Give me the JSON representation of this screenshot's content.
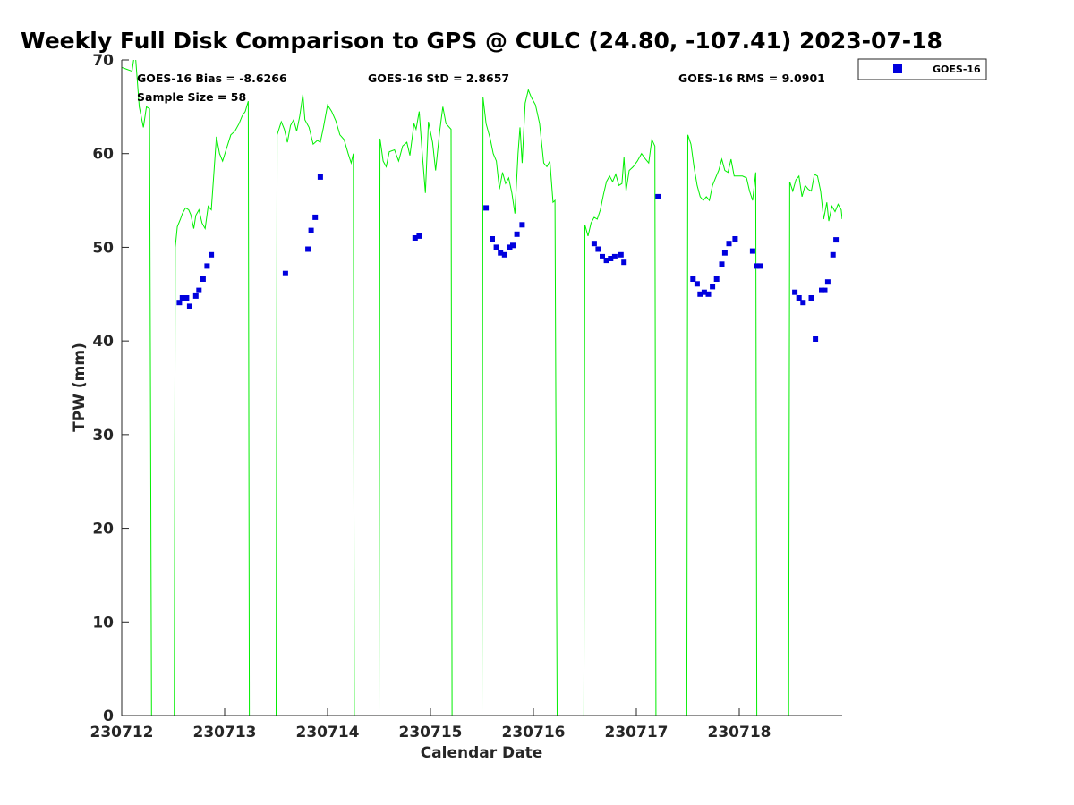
{
  "chart_data": {
    "type": "scatter",
    "title": "Weekly Full Disk Comparison to GPS @ CULC (24.80, -107.41) 2023-07-18",
    "xlabel": "Calendar Date",
    "ylabel": "TPW (mm)",
    "xlim": [
      0,
      7
    ],
    "ylim": [
      0,
      70
    ],
    "x_ticks": [
      {
        "value": 0,
        "label": "230712"
      },
      {
        "value": 1,
        "label": "230713"
      },
      {
        "value": 2,
        "label": "230714"
      },
      {
        "value": 3,
        "label": "230715"
      },
      {
        "value": 4,
        "label": "230716"
      },
      {
        "value": 5,
        "label": "230717"
      },
      {
        "value": 6,
        "label": "230718"
      }
    ],
    "y_ticks": [
      0,
      10,
      20,
      30,
      40,
      50,
      60,
      70
    ],
    "stats": {
      "bias": "GOES-16 Bias = -8.6266",
      "std": "GOES-16 StD = 2.8657",
      "rms": "GOES-16 RMS = 9.0901",
      "sample_size": "Sample Size = 58"
    },
    "legend": {
      "position": "top-right",
      "entries": [
        "GOES-16"
      ]
    },
    "colors": {
      "goes": "#0000dd",
      "gps": "#00ee00",
      "axis": "#262626"
    },
    "series": [
      {
        "name": "GOES-16",
        "marker": "square",
        "points": [
          [
            0.56,
            44.1
          ],
          [
            0.59,
            44.6
          ],
          [
            0.63,
            44.6
          ],
          [
            0.66,
            43.7
          ],
          [
            0.72,
            44.8
          ],
          [
            0.75,
            45.4
          ],
          [
            0.79,
            46.6
          ],
          [
            0.83,
            48.0
          ],
          [
            0.87,
            49.2
          ],
          [
            1.59,
            47.2
          ],
          [
            1.81,
            49.8
          ],
          [
            1.84,
            51.8
          ],
          [
            1.88,
            53.2
          ],
          [
            1.93,
            57.5
          ],
          [
            2.85,
            51.0
          ],
          [
            2.89,
            51.2
          ],
          [
            3.54,
            54.2
          ],
          [
            3.6,
            50.9
          ],
          [
            3.64,
            50.0
          ],
          [
            3.68,
            49.4
          ],
          [
            3.72,
            49.2
          ],
          [
            3.77,
            50.0
          ],
          [
            3.8,
            50.2
          ],
          [
            3.84,
            51.4
          ],
          [
            3.89,
            52.4
          ],
          [
            4.59,
            50.4
          ],
          [
            4.63,
            49.8
          ],
          [
            4.67,
            49.0
          ],
          [
            4.71,
            48.6
          ],
          [
            4.75,
            48.8
          ],
          [
            4.79,
            49.0
          ],
          [
            4.85,
            49.2
          ],
          [
            4.88,
            48.4
          ],
          [
            5.21,
            55.4
          ],
          [
            5.55,
            46.6
          ],
          [
            5.59,
            46.1
          ],
          [
            5.62,
            45.0
          ],
          [
            5.66,
            45.2
          ],
          [
            5.7,
            45.0
          ],
          [
            5.74,
            45.8
          ],
          [
            5.78,
            46.6
          ],
          [
            5.83,
            48.2
          ],
          [
            5.86,
            49.4
          ],
          [
            5.9,
            50.4
          ],
          [
            5.96,
            50.9
          ],
          [
            6.13,
            49.6
          ],
          [
            6.17,
            48.0
          ],
          [
            6.2,
            48.0
          ],
          [
            6.54,
            45.2
          ],
          [
            6.58,
            44.6
          ],
          [
            6.62,
            44.1
          ],
          [
            6.7,
            44.6
          ],
          [
            6.74,
            40.2
          ],
          [
            6.8,
            45.4
          ],
          [
            6.83,
            45.4
          ],
          [
            6.86,
            46.3
          ],
          [
            6.91,
            49.2
          ],
          [
            6.94,
            50.8
          ]
        ]
      },
      {
        "name": "GPS",
        "line": true,
        "points": [
          [
            0.0,
            69.2
          ],
          [
            0.05,
            69.0
          ],
          [
            0.1,
            68.8
          ],
          [
            0.13,
            71.0
          ],
          [
            0.17,
            65.0
          ],
          [
            0.21,
            62.8
          ],
          [
            0.24,
            65.0
          ],
          [
            0.27,
            64.8
          ],
          [
            0.29,
            0
          ],
          [
            0.51,
            0
          ],
          [
            0.52,
            50.0
          ],
          [
            0.54,
            52.2
          ],
          [
            0.57,
            53.0
          ],
          [
            0.59,
            53.6
          ],
          [
            0.62,
            54.2
          ],
          [
            0.65,
            54.0
          ],
          [
            0.67,
            53.5
          ],
          [
            0.7,
            52.0
          ],
          [
            0.72,
            53.4
          ],
          [
            0.75,
            54.0
          ],
          [
            0.78,
            52.6
          ],
          [
            0.81,
            52.0
          ],
          [
            0.84,
            54.4
          ],
          [
            0.87,
            54.0
          ],
          [
            0.89,
            57.0
          ],
          [
            0.92,
            61.8
          ],
          [
            0.95,
            60.0
          ],
          [
            0.98,
            59.2
          ],
          [
            1.02,
            60.6
          ],
          [
            1.06,
            62.0
          ],
          [
            1.1,
            62.4
          ],
          [
            1.14,
            63.2
          ],
          [
            1.17,
            64.0
          ],
          [
            1.2,
            64.5
          ],
          [
            1.23,
            65.6
          ],
          [
            1.24,
            0
          ],
          [
            1.5,
            0
          ],
          [
            1.51,
            62.0
          ],
          [
            1.55,
            63.4
          ],
          [
            1.58,
            62.6
          ],
          [
            1.61,
            61.2
          ],
          [
            1.64,
            63.0
          ],
          [
            1.67,
            63.6
          ],
          [
            1.7,
            62.4
          ],
          [
            1.73,
            64.0
          ],
          [
            1.76,
            66.3
          ],
          [
            1.78,
            63.6
          ],
          [
            1.82,
            62.8
          ],
          [
            1.86,
            61.0
          ],
          [
            1.9,
            61.4
          ],
          [
            1.93,
            61.2
          ],
          [
            1.96,
            62.8
          ],
          [
            2.0,
            65.2
          ],
          [
            2.04,
            64.5
          ],
          [
            2.08,
            63.5
          ],
          [
            2.12,
            62.0
          ],
          [
            2.16,
            61.5
          ],
          [
            2.2,
            60.0
          ],
          [
            2.23,
            59.0
          ],
          [
            2.25,
            60.0
          ],
          [
            2.26,
            0
          ],
          [
            2.5,
            0
          ],
          [
            2.51,
            61.6
          ],
          [
            2.54,
            59.2
          ],
          [
            2.57,
            58.6
          ],
          [
            2.6,
            60.2
          ],
          [
            2.65,
            60.4
          ],
          [
            2.69,
            59.2
          ],
          [
            2.73,
            60.8
          ],
          [
            2.77,
            61.2
          ],
          [
            2.8,
            59.8
          ],
          [
            2.84,
            63.2
          ],
          [
            2.86,
            62.6
          ],
          [
            2.89,
            64.5
          ],
          [
            2.92,
            60.0
          ],
          [
            2.95,
            55.8
          ],
          [
            2.98,
            63.4
          ],
          [
            3.02,
            61.2
          ],
          [
            3.05,
            58.2
          ],
          [
            3.09,
            62.4
          ],
          [
            3.12,
            65.0
          ],
          [
            3.15,
            63.2
          ],
          [
            3.2,
            62.6
          ],
          [
            3.21,
            0
          ],
          [
            3.5,
            0
          ],
          [
            3.51,
            66.0
          ],
          [
            3.54,
            63.2
          ],
          [
            3.58,
            61.6
          ],
          [
            3.61,
            60.0
          ],
          [
            3.64,
            59.2
          ],
          [
            3.67,
            56.2
          ],
          [
            3.7,
            58.0
          ],
          [
            3.73,
            56.8
          ],
          [
            3.76,
            57.4
          ],
          [
            3.79,
            55.8
          ],
          [
            3.82,
            53.6
          ],
          [
            3.85,
            60.0
          ],
          [
            3.87,
            62.8
          ],
          [
            3.89,
            59.0
          ],
          [
            3.92,
            65.4
          ],
          [
            3.95,
            66.8
          ],
          [
            3.98,
            66.0
          ],
          [
            4.02,
            65.2
          ],
          [
            4.06,
            63.2
          ],
          [
            4.1,
            59.0
          ],
          [
            4.13,
            58.6
          ],
          [
            4.16,
            59.2
          ],
          [
            4.19,
            54.8
          ],
          [
            4.21,
            55.0
          ],
          [
            4.23,
            0
          ],
          [
            4.49,
            0
          ],
          [
            4.5,
            52.4
          ],
          [
            4.53,
            51.2
          ],
          [
            4.56,
            52.6
          ],
          [
            4.59,
            53.2
          ],
          [
            4.62,
            53.0
          ],
          [
            4.65,
            54.0
          ],
          [
            4.68,
            55.6
          ],
          [
            4.71,
            57.0
          ],
          [
            4.74,
            57.6
          ],
          [
            4.77,
            57.0
          ],
          [
            4.8,
            57.8
          ],
          [
            4.83,
            56.6
          ],
          [
            4.86,
            56.8
          ],
          [
            4.88,
            59.6
          ],
          [
            4.9,
            56.0
          ],
          [
            4.93,
            58.2
          ],
          [
            4.97,
            58.6
          ],
          [
            5.01,
            59.2
          ],
          [
            5.05,
            60.0
          ],
          [
            5.09,
            59.4
          ],
          [
            5.12,
            59.0
          ],
          [
            5.15,
            61.5
          ],
          [
            5.18,
            60.8
          ],
          [
            5.19,
            0
          ],
          [
            5.49,
            0
          ],
          [
            5.5,
            62.0
          ],
          [
            5.53,
            61.0
          ],
          [
            5.56,
            58.6
          ],
          [
            5.59,
            56.6
          ],
          [
            5.62,
            55.4
          ],
          [
            5.65,
            55.0
          ],
          [
            5.68,
            55.4
          ],
          [
            5.71,
            55.0
          ],
          [
            5.74,
            56.6
          ],
          [
            5.77,
            57.4
          ],
          [
            5.8,
            58.2
          ],
          [
            5.83,
            59.4
          ],
          [
            5.86,
            58.2
          ],
          [
            5.89,
            58.0
          ],
          [
            5.92,
            59.4
          ],
          [
            5.95,
            57.6
          ],
          [
            5.99,
            57.6
          ],
          [
            6.03,
            57.6
          ],
          [
            6.07,
            57.4
          ],
          [
            6.1,
            56.0
          ],
          [
            6.13,
            55.0
          ],
          [
            6.16,
            58.0
          ],
          [
            6.17,
            0
          ],
          [
            6.48,
            0
          ],
          [
            6.49,
            57.0
          ],
          [
            6.52,
            56.0
          ],
          [
            6.55,
            57.2
          ],
          [
            6.58,
            57.6
          ],
          [
            6.61,
            55.4
          ],
          [
            6.64,
            56.6
          ],
          [
            6.67,
            56.2
          ],
          [
            6.7,
            56.0
          ],
          [
            6.73,
            57.8
          ],
          [
            6.76,
            57.6
          ],
          [
            6.79,
            56.0
          ],
          [
            6.82,
            53.0
          ],
          [
            6.85,
            54.8
          ],
          [
            6.87,
            52.8
          ],
          [
            6.9,
            54.4
          ],
          [
            6.93,
            53.8
          ],
          [
            6.96,
            54.6
          ],
          [
            6.99,
            54.0
          ],
          [
            7.0,
            53.0
          ]
        ]
      }
    ]
  }
}
